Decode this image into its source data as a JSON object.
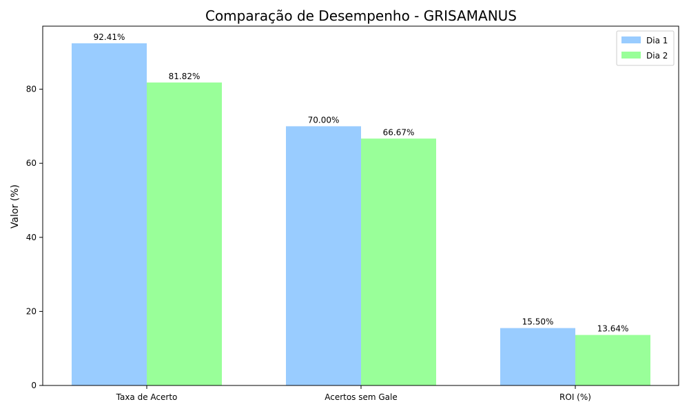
{
  "chart_data": {
    "type": "bar",
    "title": "Comparação de Desempenho - GRISAMANUS",
    "xlabel": "",
    "ylabel": "Valor (%)",
    "categories": [
      "Taxa de Acerto",
      "Acertos sem Gale",
      "ROI (%)"
    ],
    "series": [
      {
        "name": "Dia 1",
        "values": [
          92.41,
          70.0,
          15.5
        ],
        "labels": [
          "92.41%",
          "70.00%",
          "15.50%"
        ],
        "color": "#99ccff"
      },
      {
        "name": "Dia 2",
        "values": [
          81.82,
          66.67,
          13.64
        ],
        "labels": [
          "81.82%",
          "66.67%",
          "13.64%"
        ],
        "color": "#99ff99"
      }
    ],
    "ylim": [
      0,
      97.03
    ],
    "yticks": [
      0,
      20,
      40,
      60,
      80
    ],
    "yticklabels": [
      "0",
      "20",
      "40",
      "60",
      "80"
    ],
    "grid": false,
    "legend_position": "top-right"
  }
}
